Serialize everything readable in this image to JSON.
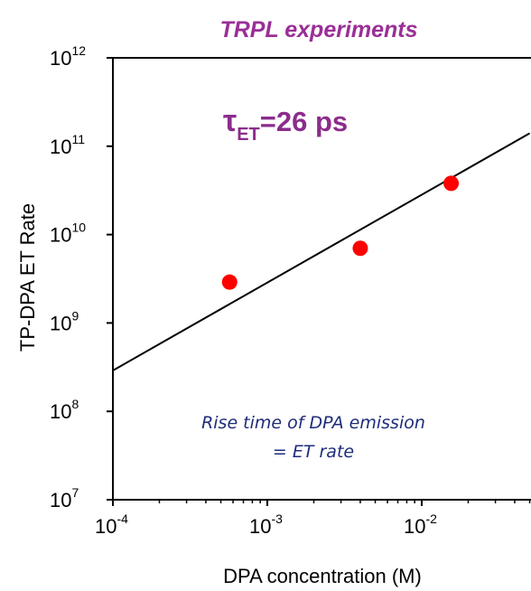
{
  "chart_data": {
    "type": "scatter",
    "title": "TRPL experiments",
    "xlabel": "DPA concentration (M)",
    "ylabel": "TP-DPA ET Rate",
    "x_scale": "log",
    "y_scale": "log",
    "xlim": [
      0.0001,
      0.05
    ],
    "ylim": [
      10000000,
      1000000000000
    ],
    "grid": false,
    "x_ticks": [
      {
        "base": "10",
        "exp": "-4",
        "value": 0.0001
      },
      {
        "base": "10",
        "exp": "-3",
        "value": 0.001
      },
      {
        "base": "10",
        "exp": "-2",
        "value": 0.01
      }
    ],
    "y_ticks": [
      {
        "base": "10",
        "exp": "7",
        "value": 10000000
      },
      {
        "base": "10",
        "exp": "8",
        "value": 100000000
      },
      {
        "base": "10",
        "exp": "9",
        "value": 1000000000
      },
      {
        "base": "10",
        "exp": "10",
        "value": 10000000000
      },
      {
        "base": "10",
        "exp": "11",
        "value": 100000000000
      },
      {
        "base": "10",
        "exp": "12",
        "value": 1000000000000
      }
    ],
    "series": [
      {
        "type": "scatter",
        "color": "#ff0000",
        "x": [
          0.00057,
          0.004,
          0.0155
        ],
        "y": [
          2900000000,
          7000000000,
          38000000000
        ]
      },
      {
        "type": "line",
        "color": "#000000",
        "x": [
          0.0001,
          0.05
        ],
        "y": [
          290000000,
          140000000000
        ]
      }
    ],
    "annotations": {
      "tau": {
        "symbol": "τ",
        "subscript": "ET",
        "text": "=26 ps",
        "color": "#8b2c8c"
      },
      "rise_line1": "Rise time of DPA emission",
      "rise_line2": "= ET rate",
      "rise_color": "#1f2d7a"
    },
    "title_color": "#9a2f96"
  }
}
